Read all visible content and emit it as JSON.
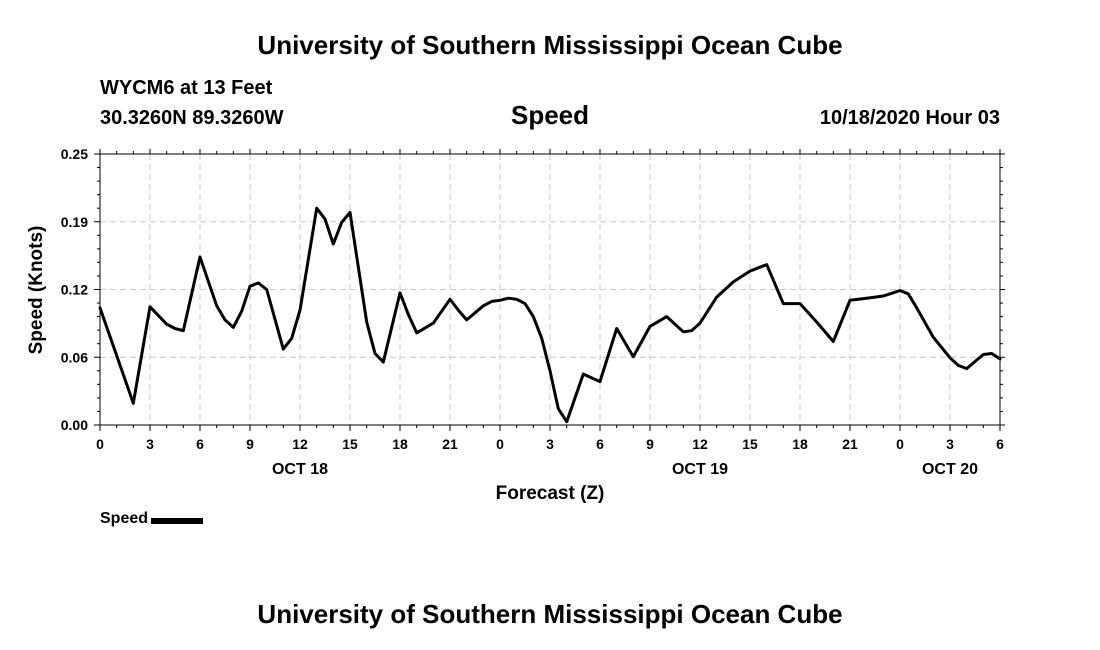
{
  "header": {
    "title": "University of Southern Mississippi Ocean Cube",
    "station": "WYCM6 at 13 Feet",
    "coords": "30.3260N 89.3260W",
    "variable": "Speed",
    "datetime": "10/18/2020 Hour 03"
  },
  "footer": {
    "title": "University of Southern Mississippi Ocean Cube"
  },
  "legend": {
    "label": "Speed"
  },
  "chart_data": {
    "type": "line",
    "title": "Speed",
    "xlabel": "Forecast (Z)",
    "ylabel": "Speed (Knots)",
    "x_unit": "forecast hour from 10/18/2020 00Z",
    "xlim": [
      0,
      54
    ],
    "ylim": [
      0,
      0.25
    ],
    "yticks": [
      "0.00",
      "0.06",
      "0.12",
      "0.19",
      "0.25"
    ],
    "ytick_values": [
      0,
      0.0625,
      0.125,
      0.1875,
      0.25
    ],
    "xtick_hours": [
      0,
      3,
      6,
      9,
      12,
      15,
      18,
      21,
      24,
      27,
      30,
      33,
      36,
      39,
      42,
      45,
      48,
      51,
      54
    ],
    "xtick_labels": [
      "0",
      "3",
      "6",
      "9",
      "12",
      "15",
      "18",
      "21",
      "0",
      "3",
      "6",
      "9",
      "12",
      "15",
      "18",
      "21",
      "0",
      "3",
      "6"
    ],
    "date_labels": [
      {
        "hour": 12,
        "label": "OCT 18"
      },
      {
        "hour": 36,
        "label": "OCT 19"
      },
      {
        "hour": 51,
        "label": "OCT 20"
      }
    ],
    "grid": true,
    "series": [
      {
        "name": "Speed",
        "color": "#000000",
        "x": [
          0,
          1,
          2,
          3,
          4,
          4.5,
          5,
          6,
          7,
          7.5,
          8,
          8.5,
          9,
          9.5,
          10,
          11,
          11.5,
          12,
          13,
          13.5,
          14,
          14.5,
          15,
          16,
          16.5,
          17,
          18,
          18.5,
          19,
          20,
          21,
          21.5,
          22,
          23,
          23.5,
          24,
          24.5,
          25,
          25.5,
          26,
          26.5,
          27,
          27.5,
          28,
          29,
          30,
          31,
          32,
          32.5,
          33,
          34,
          35,
          35.5,
          36,
          37,
          38,
          39,
          39.5,
          40,
          41,
          42,
          43,
          44,
          45,
          46,
          47,
          48,
          48.5,
          49,
          50,
          51,
          51.5,
          52,
          53,
          53.5,
          54
        ],
        "y": [
          0.108,
          0.064,
          0.02,
          0.109,
          0.093,
          0.089,
          0.087,
          0.155,
          0.11,
          0.097,
          0.09,
          0.105,
          0.128,
          0.131,
          0.125,
          0.07,
          0.08,
          0.106,
          0.2,
          0.19,
          0.167,
          0.187,
          0.196,
          0.095,
          0.066,
          0.058,
          0.122,
          0.102,
          0.085,
          0.094,
          0.116,
          0.106,
          0.097,
          0.11,
          0.114,
          0.115,
          0.117,
          0.116,
          0.112,
          0.1,
          0.08,
          0.05,
          0.015,
          0.003,
          0.047,
          0.04,
          0.089,
          0.063,
          0.077,
          0.091,
          0.1,
          0.086,
          0.087,
          0.094,
          0.118,
          0.132,
          0.142,
          0.145,
          0.148,
          0.112,
          0.112,
          0.095,
          0.077,
          0.115,
          0.117,
          0.119,
          0.124,
          0.121,
          0.108,
          0.081,
          0.062,
          0.055,
          0.052,
          0.065,
          0.066,
          0.061
        ]
      }
    ]
  }
}
